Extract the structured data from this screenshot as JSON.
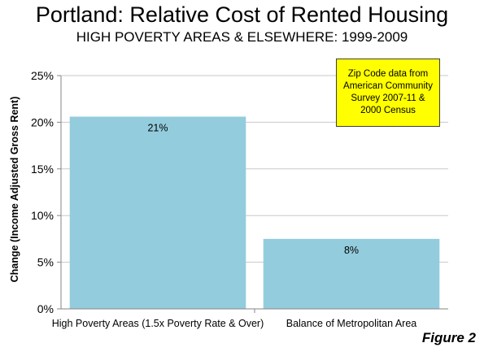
{
  "chart_data": {
    "type": "bar",
    "title": "Portland: Relative Cost of Rented Housing",
    "subtitle": "HIGH POVERTY AREAS & ELSEWHERE: 1999-2009",
    "categories": [
      "High Poverty Areas (1.5x Poverty Rate & Over)",
      "Balance of Metropolitan Area"
    ],
    "values": [
      20.6,
      7.5
    ],
    "data_labels": [
      "21%",
      "8%"
    ],
    "ylabel": "Change (Income Adjusted Gross Rent)",
    "xlabel": "",
    "ylim": [
      0,
      25
    ],
    "yticks": [
      0,
      5,
      10,
      15,
      20,
      25
    ],
    "ytick_labels": [
      "0%",
      "5%",
      "10%",
      "15%",
      "20%",
      "25%"
    ],
    "grid": true,
    "bar_color": "#93cddd",
    "annotation": "Zip Code data from\nAmerican Community\nSurvey 2007-11 &\n2000 Census",
    "annotation_color": "#ffff00"
  },
  "figure_label": "Figure 2"
}
